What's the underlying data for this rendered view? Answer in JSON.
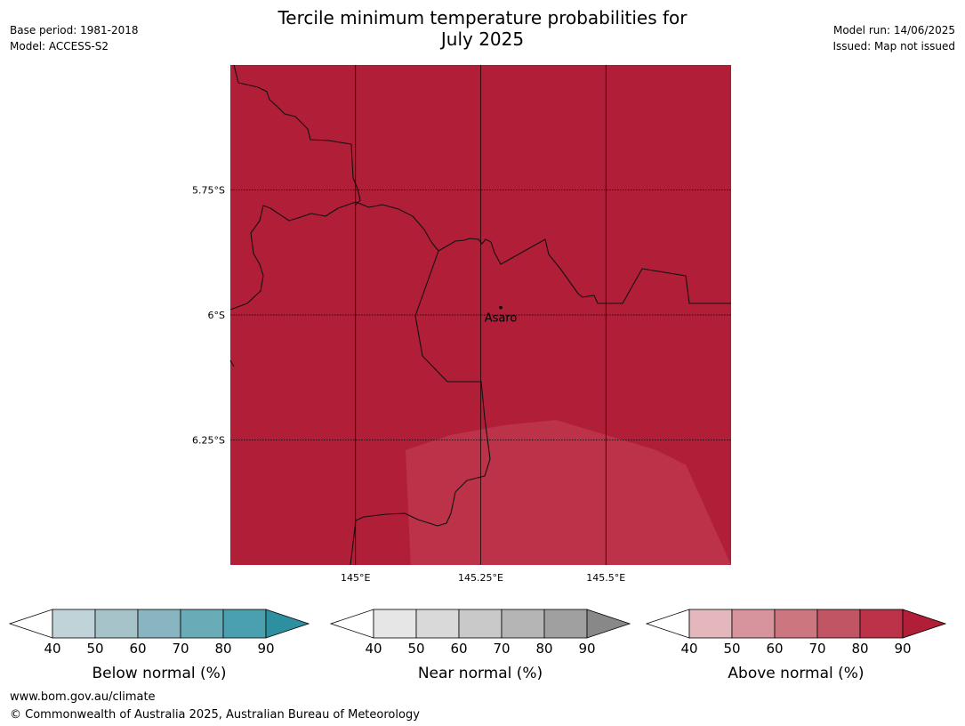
{
  "header": {
    "title_line1": "Tercile minimum temperature probabilities for",
    "title_line2": "July 2025",
    "base_period": "Base period: 1981-2018",
    "model": "Model: ACCESS-S2",
    "model_run": "Model run: 14/06/2025",
    "issued": "Issued: Map not issued"
  },
  "map": {
    "background_color": "#b01e38",
    "lon_range": [
      144.75,
      145.75
    ],
    "lat_range": [
      -6.5,
      -5.5
    ],
    "lon_ticks": [
      {
        "value": 145.0,
        "label": "145°E"
      },
      {
        "value": 145.25,
        "label": "145.25°E"
      },
      {
        "value": 145.5,
        "label": "145.5°E"
      }
    ],
    "lat_ticks": [
      {
        "value": -5.75,
        "label": "5.75°S"
      },
      {
        "value": -6.0,
        "label": "6°S"
      },
      {
        "value": -6.25,
        "label": "6.25°S"
      }
    ],
    "places": [
      {
        "name": "Asaro",
        "lon": 145.29,
        "lat": -6.01
      }
    ],
    "regions": [
      {
        "category": "Above normal",
        "class": "70-80",
        "color": "#bc3248",
        "polygon": [
          [
            145.1,
            -6.27
          ],
          [
            145.19,
            -6.24
          ],
          [
            145.3,
            -6.22
          ],
          [
            145.4,
            -6.21
          ],
          [
            145.5,
            -6.24
          ],
          [
            145.6,
            -6.27
          ],
          [
            145.66,
            -6.3
          ],
          [
            145.75,
            -6.5
          ],
          [
            145.11,
            -6.5
          ]
        ]
      }
    ]
  },
  "colorbars": [
    {
      "title": "Below normal (%)",
      "ticks": [
        "40",
        "50",
        "60",
        "70",
        "80",
        "90"
      ],
      "colors": [
        "#ffffff",
        "#bfd3d9",
        "#a6c3c9",
        "#89b5c1",
        "#6aabb8",
        "#4aa0ae",
        "#2e8fa0"
      ]
    },
    {
      "title": "Near normal (%)",
      "ticks": [
        "40",
        "50",
        "60",
        "70",
        "80",
        "90"
      ],
      "colors": [
        "#ffffff",
        "#e6e6e6",
        "#d9d9d9",
        "#c9c9c9",
        "#b5b5b5",
        "#a0a0a0",
        "#888888"
      ]
    },
    {
      "title": "Above normal (%)",
      "ticks": [
        "40",
        "50",
        "60",
        "70",
        "80",
        "90"
      ],
      "colors": [
        "#ffffff",
        "#e4b7bc",
        "#d8949c",
        "#cc7680",
        "#c15564",
        "#bc3248",
        "#b01e38"
      ]
    }
  ],
  "footer": {
    "url": "www.bom.gov.au/climate",
    "copyright": "© Commonwealth of Australia 2025, Australian Bureau of Meteorology"
  }
}
